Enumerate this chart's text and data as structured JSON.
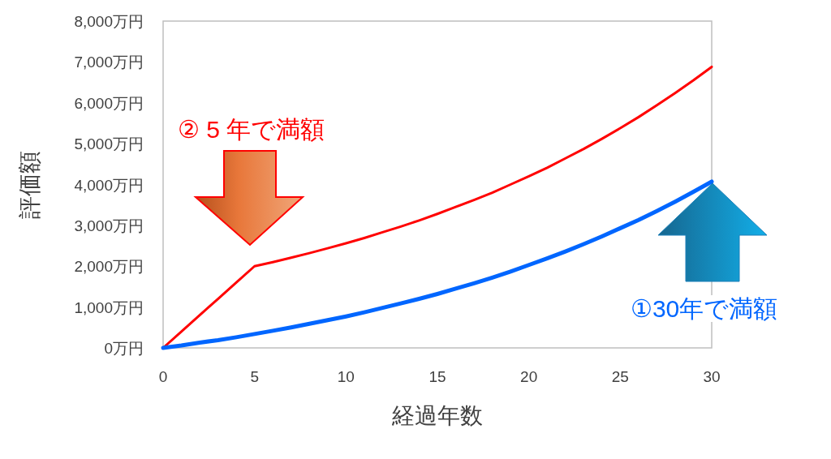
{
  "chart_data": {
    "type": "line",
    "xlabel": "経過年数",
    "ylabel": "評価額",
    "x": [
      0,
      1,
      2,
      3,
      4,
      5,
      6,
      7,
      8,
      9,
      10,
      11,
      12,
      13,
      14,
      15,
      16,
      17,
      18,
      19,
      20,
      21,
      22,
      23,
      24,
      25,
      26,
      27,
      28,
      29,
      30
    ],
    "series": [
      {
        "color": "#ff0000",
        "values": [
          0,
          400,
          800,
          1200,
          1600,
          2000,
          2100,
          2210,
          2320,
          2440,
          2560,
          2690,
          2830,
          2970,
          3120,
          3280,
          3450,
          3620,
          3800,
          4000,
          4200,
          4410,
          4640,
          4870,
          5120,
          5380,
          5650,
          5940,
          6240,
          6550,
          6880
        ]
      },
      {
        "color": "#0066ff",
        "values": [
          0,
          60,
          130,
          190,
          260,
          340,
          420,
          500,
          590,
          680,
          770,
          870,
          980,
          1090,
          1200,
          1320,
          1450,
          1580,
          1720,
          1870,
          2030,
          2190,
          2360,
          2540,
          2730,
          2930,
          3130,
          3350,
          3580,
          3820,
          4070
        ]
      }
    ],
    "xlim": [
      0,
      30
    ],
    "xticks": [
      0,
      5,
      10,
      15,
      20,
      25,
      30
    ],
    "ylim": [
      0,
      8000
    ],
    "yticks": [
      {
        "value": 0,
        "label": "0万円"
      },
      {
        "value": 1000,
        "label": "1,000万円"
      },
      {
        "value": 2000,
        "label": "2,000万円"
      },
      {
        "value": 3000,
        "label": "3,000万円"
      },
      {
        "value": 4000,
        "label": "4,000万円"
      },
      {
        "value": 5000,
        "label": "5,000万円"
      },
      {
        "value": 6000,
        "label": "6,000万円"
      },
      {
        "value": 7000,
        "label": "7,000万円"
      },
      {
        "value": 8000,
        "label": "8,000万円"
      }
    ],
    "grid": false,
    "marker": "none",
    "line_style": "solid",
    "annotations": [
      "② 5 年で満額",
      "①30年で満額"
    ]
  }
}
